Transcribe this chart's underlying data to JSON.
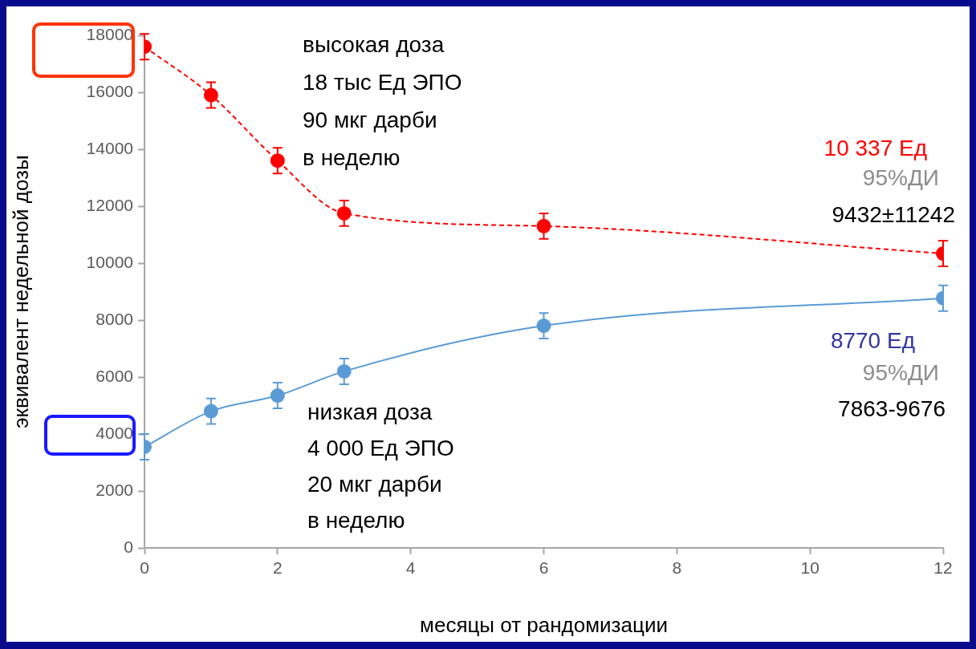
{
  "chart_data": {
    "type": "line",
    "xlabel": "месяцы от рандомизации",
    "ylabel": "эквивалент недельной дозы",
    "x": [
      0,
      1,
      2,
      3,
      6,
      12
    ],
    "series": [
      {
        "color": "#ff0000",
        "values": [
          17600,
          15900,
          13600,
          11750,
          11300,
          10337
        ],
        "errors": [
          450,
          450,
          450,
          450,
          450,
          450
        ],
        "line_style": "dashed"
      },
      {
        "color": "#5b9bd5",
        "values": [
          3550,
          4800,
          5350,
          6200,
          7800,
          8770
        ],
        "errors": [
          450,
          450,
          450,
          450,
          450,
          450
        ],
        "line_style": "solid"
      }
    ],
    "xlim": [
      0,
      12
    ],
    "xticks": [
      0,
      2,
      4,
      6,
      8,
      10,
      12
    ],
    "ylim": [
      0,
      18000
    ],
    "yticks": [
      0,
      2000,
      4000,
      6000,
      8000,
      10000,
      12000,
      14000,
      16000,
      18000
    ],
    "marker": "circle",
    "grid": false,
    "legend": false,
    "annotations": [
      "высокая доза\n18 тыс Ед ЭПО\n90 мкг дарби\nв неделю",
      "10 337 Ед",
      "95%ДИ",
      "9432±11242",
      "8770 Ед",
      "95%ДИ",
      "7863-9676",
      "низкая доза\n4 000 Ед ЭПО\n20 мкг дарби\nв неделю"
    ]
  }
}
